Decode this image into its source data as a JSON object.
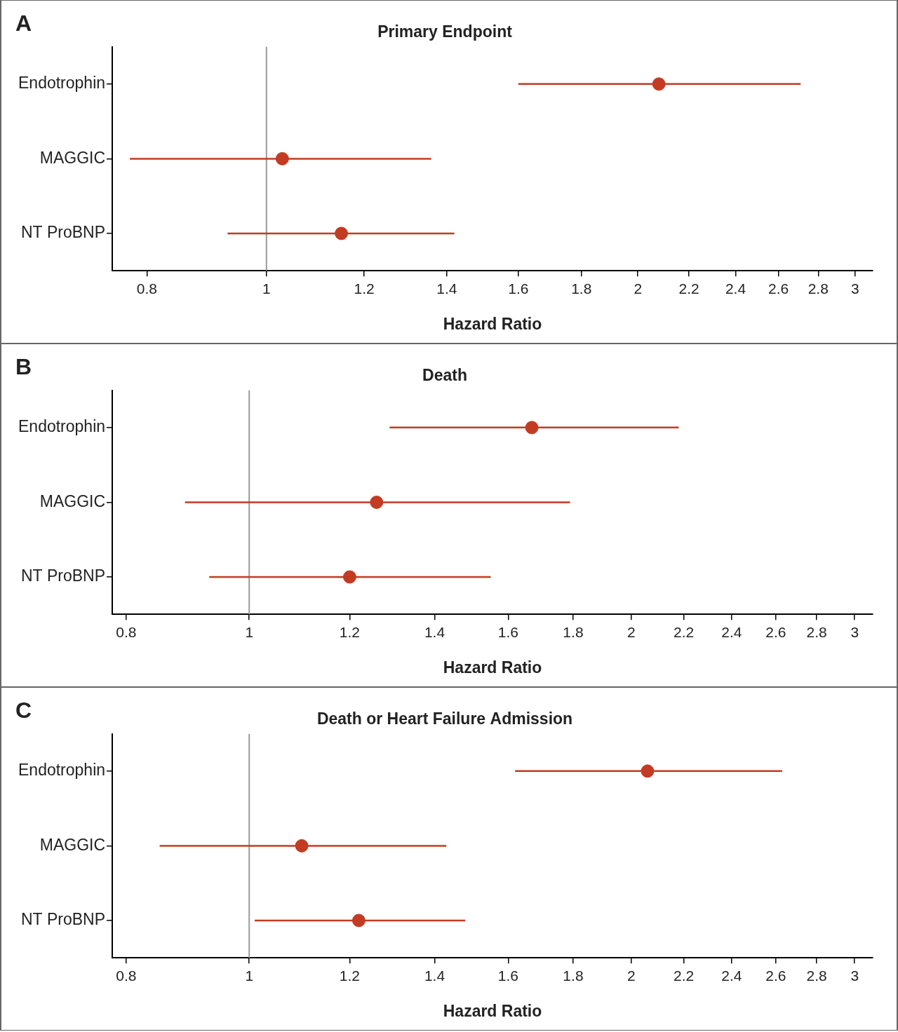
{
  "chart_data": [
    {
      "type": "forest",
      "panel": "A",
      "title": "Primary Endpoint",
      "x_label": "Hazard Ratio",
      "categories": [
        "Endotrophin",
        "MAGGIC",
        "NT ProBNP"
      ],
      "values": [
        2.08,
        1.03,
        1.15
      ],
      "ci_low": [
        1.6,
        0.775,
        0.93
      ],
      "ci_high": [
        2.71,
        1.36,
        1.42
      ],
      "color": "#c23b22",
      "log": "x",
      "grid": false,
      "reference_line": 1,
      "xlim": [
        0.75,
        3.1
      ],
      "xticks": [
        0.8,
        1,
        1.2,
        1.4,
        1.6,
        1.8,
        2,
        2.2,
        2.4,
        2.6,
        2.8,
        3
      ]
    },
    {
      "type": "forest",
      "panel": "B",
      "title": "Death",
      "x_label": "Hazard Ratio",
      "categories": [
        "Endotrophin",
        "MAGGIC",
        "NT ProBNP"
      ],
      "values": [
        1.67,
        1.26,
        1.2
      ],
      "ci_low": [
        1.29,
        0.89,
        0.93
      ],
      "ci_high": [
        2.18,
        1.79,
        1.55
      ],
      "color": "#c23b22",
      "log": "x",
      "grid": false,
      "reference_line": 1,
      "xlim": [
        0.78,
        3.1
      ],
      "xticks": [
        0.8,
        1,
        1.2,
        1.4,
        1.6,
        1.8,
        2,
        2.2,
        2.4,
        2.6,
        2.8,
        3
      ]
    },
    {
      "type": "forest",
      "panel": "C",
      "title": "Death or Heart Failure Admission",
      "x_label": "Hazard Ratio",
      "categories": [
        "Endotrophin",
        "MAGGIC",
        "NT ProBNP"
      ],
      "values": [
        2.06,
        1.1,
        1.22
      ],
      "ci_low": [
        1.62,
        0.85,
        1.01
      ],
      "ci_high": [
        2.63,
        1.43,
        1.48
      ],
      "color": "#c23b22",
      "log": "x",
      "grid": false,
      "reference_line": 1,
      "xlim": [
        0.78,
        3.1
      ],
      "xticks": [
        0.8,
        1,
        1.2,
        1.4,
        1.6,
        1.8,
        2,
        2.2,
        2.4,
        2.6,
        2.8,
        3
      ]
    }
  ]
}
